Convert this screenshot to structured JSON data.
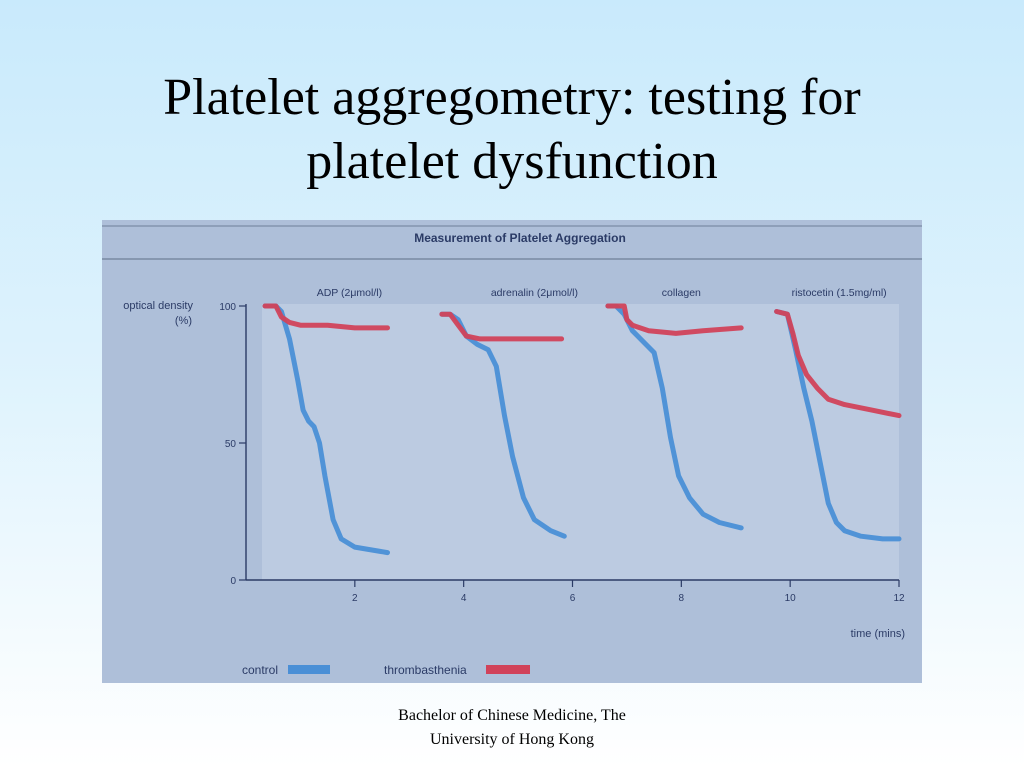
{
  "slide": {
    "title_line1": "Platelet aggregometry: testing for",
    "title_line2": "platelet dysfunction",
    "footer_line1": "Bachelor of Chinese Medicine, The",
    "footer_line2": "University of Hong Kong"
  },
  "chart_data": {
    "type": "line",
    "title": "Measurement of Platelet Aggregation",
    "ylabel_line1": "optical density",
    "ylabel_line2": "(%)",
    "xlabel": "time (mins)",
    "ylim": [
      0,
      100
    ],
    "xlim": [
      0,
      12
    ],
    "y_ticks": [
      {
        "value": 0,
        "label": "0"
      },
      {
        "value": 50,
        "label": "50"
      },
      {
        "value": 100,
        "label": "100"
      }
    ],
    "x_ticks": [
      {
        "value": 2,
        "label": "2"
      },
      {
        "value": 4,
        "label": "4"
      },
      {
        "value": 6,
        "label": "6"
      },
      {
        "value": 8,
        "label": "8"
      },
      {
        "value": 10,
        "label": "10"
      },
      {
        "value": 12,
        "label": "12"
      }
    ],
    "panels": [
      {
        "label": "ADP (2μmol/l)",
        "label_x": 1.9
      },
      {
        "label": "adrenalin (2μmol/l)",
        "label_x": 5.3
      },
      {
        "label": "collagen",
        "label_x": 8.0
      },
      {
        "label": "ristocetin (1.5mg/ml)",
        "label_x": 10.9
      }
    ],
    "legend": [
      {
        "name": "control",
        "color": "#4a8fd6"
      },
      {
        "name": "thrombasthenia",
        "color": "#d1425a"
      }
    ],
    "series": [
      {
        "name": "control",
        "color": "#4a8fd6",
        "segments": [
          {
            "panel": 0,
            "x": [
              0.35,
              0.55,
              0.65,
              0.8,
              0.95,
              1.05,
              1.15,
              1.25,
              1.35,
              1.45,
              1.6,
              1.75,
              2.0,
              2.3,
              2.6
            ],
            "y": [
              100,
              100,
              98,
              88,
              73,
              62,
              58,
              56,
              50,
              38,
              22,
              15,
              12,
              11,
              10
            ]
          },
          {
            "panel": 1,
            "x": [
              3.6,
              3.75,
              3.9,
              4.05,
              4.25,
              4.45,
              4.6,
              4.75,
              4.9,
              5.1,
              5.3,
              5.6,
              5.85
            ],
            "y": [
              97,
              97,
              95,
              89,
              86,
              84,
              78,
              60,
              45,
              30,
              22,
              18,
              16
            ]
          },
          {
            "panel": 2,
            "x": [
              6.65,
              6.8,
              6.95,
              7.1,
              7.3,
              7.5,
              7.65,
              7.8,
              7.95,
              8.15,
              8.4,
              8.7,
              9.1
            ],
            "y": [
              100,
              100,
              97,
              91,
              87,
              83,
              70,
              52,
              38,
              30,
              24,
              21,
              19
            ]
          },
          {
            "panel": 3,
            "x": [
              9.75,
              9.95,
              10.1,
              10.25,
              10.4,
              10.55,
              10.7,
              10.85,
              11.0,
              11.3,
              11.7,
              12.0
            ],
            "y": [
              98,
              97,
              84,
              70,
              58,
              43,
              28,
              21,
              18,
              16,
              15,
              15
            ]
          }
        ]
      },
      {
        "name": "thrombasthenia",
        "color": "#d1425a",
        "segments": [
          {
            "panel": 0,
            "x": [
              0.35,
              0.55,
              0.65,
              0.8,
              1.0,
              1.5,
              2.0,
              2.6
            ],
            "y": [
              100,
              100,
              96,
              94,
              93,
              93,
              92,
              92
            ]
          },
          {
            "panel": 1,
            "x": [
              3.6,
              3.75,
              3.9,
              4.05,
              4.3,
              4.8,
              5.3,
              5.8
            ],
            "y": [
              97,
              97,
              93,
              89,
              88,
              88,
              88,
              88
            ]
          },
          {
            "panel": 2,
            "x": [
              6.65,
              6.8,
              6.95,
              7.0,
              7.1,
              7.4,
              7.9,
              8.4,
              9.1
            ],
            "y": [
              100,
              100,
              100,
              95,
              93,
              91,
              90,
              91,
              92
            ]
          },
          {
            "panel": 3,
            "x": [
              9.75,
              9.95,
              10.05,
              10.15,
              10.3,
              10.5,
              10.7,
              11.0,
              11.5,
              12.0
            ],
            "y": [
              98,
              97,
              90,
              82,
              75,
              70,
              66,
              64,
              62,
              60
            ]
          }
        ]
      }
    ]
  }
}
